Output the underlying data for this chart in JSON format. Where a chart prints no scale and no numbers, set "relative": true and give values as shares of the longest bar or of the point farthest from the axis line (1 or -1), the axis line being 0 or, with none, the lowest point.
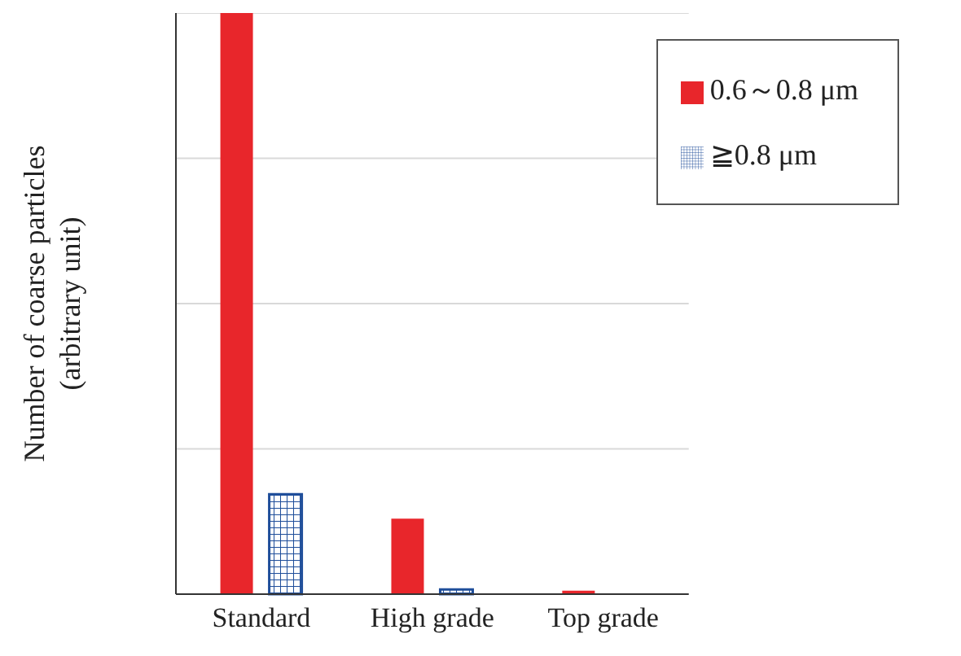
{
  "chart_data": {
    "type": "bar",
    "relative": true,
    "ylabel": "Number of coarse particles\n(arbitrary unit)",
    "categories": [
      "Standard",
      "High grade",
      "Top grade"
    ],
    "series": [
      {
        "name": "0.6～0.8 μm",
        "color": "#e8262b",
        "values": [
          1,
          0.13,
          0.006
        ]
      },
      {
        "name": "≧0.8 μm",
        "color": "#1f4e9a",
        "values": [
          0.172,
          0.008,
          0
        ]
      }
    ],
    "grid": "y",
    "legend": "top right"
  }
}
